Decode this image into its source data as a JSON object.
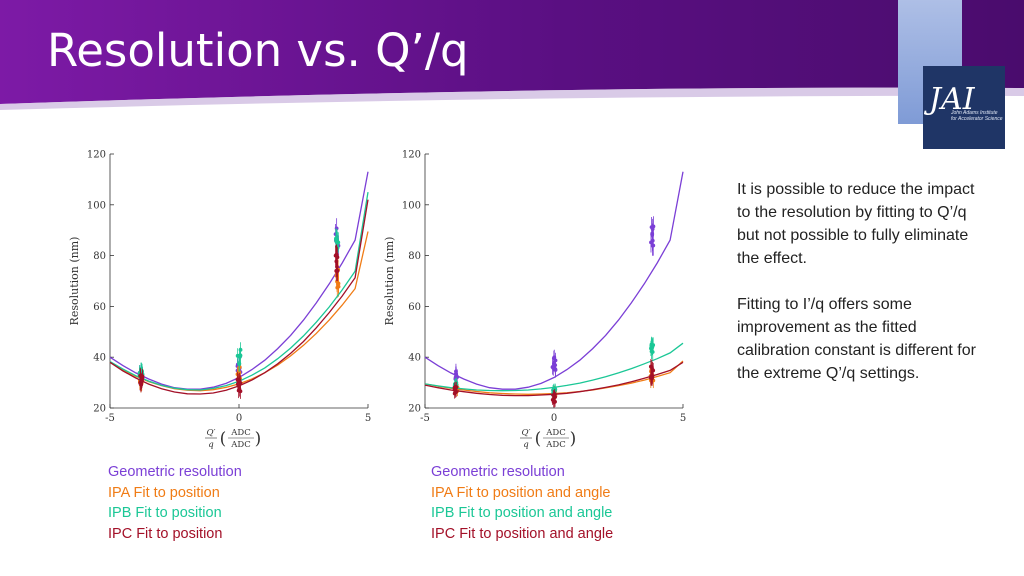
{
  "slide": {
    "title": "Resolution vs. Q’/q",
    "logo": {
      "text": "JAI",
      "subtitle": "John Adams Institute for Accelerator Science"
    },
    "paragraphs": [
      "It is possible to reduce the impact to the resolution by fitting to Q’/q but not possible to fully eliminate the effect.",
      "Fitting to I’/q offers some improvement as the fitted calibration constant is different for the extreme Q’/q settings."
    ],
    "legend_left": [
      {
        "label": "Geometric resolution",
        "color": "#7b3fd6"
      },
      {
        "label": "IPA Fit to position",
        "color": "#f07c16"
      },
      {
        "label": "IPB Fit to position",
        "color": "#1bc796"
      },
      {
        "label": "IPC Fit to position",
        "color": "#a31028"
      }
    ],
    "legend_right": [
      {
        "label": "Geometric resolution",
        "color": "#7b3fd6"
      },
      {
        "label": "IPA Fit to position and angle",
        "color": "#f07c16"
      },
      {
        "label": "IPB Fit to position and angle",
        "color": "#1bc796"
      },
      {
        "label": "IPC Fit to position  and angle",
        "color": "#a31028"
      }
    ]
  },
  "chart_data": [
    {
      "type": "scatter",
      "title": "",
      "ylabel": "Resolution (nm)",
      "xlabel_parts": {
        "lhs_num": "Q′",
        "lhs_den": "q",
        "unit_num": "ADC",
        "unit_den": "ADC"
      },
      "xlim": [
        -5,
        5
      ],
      "ylim": [
        20,
        120
      ],
      "xticks": [
        "-5",
        "0",
        "5"
      ],
      "yticks": [
        "20",
        "40",
        "60",
        "80",
        "100",
        "120"
      ],
      "series": [
        {
          "name": "Geometric resolution",
          "color": "#7b3fd6",
          "fit": [
            40.0,
            36.7,
            33.8,
            31.4,
            29.4,
            28.0,
            27.4,
            27.4,
            28.2,
            29.7,
            32.0,
            35.1,
            38.8,
            43.4,
            48.6,
            54.6,
            61.4,
            68.9,
            77.1,
            86.1,
            113.0
          ],
          "groups": [
            {
              "x": -3.8,
              "mean": 32,
              "spread": 5,
              "err": 3
            },
            {
              "x": 0.0,
              "mean": 37,
              "spread": 7,
              "err": 3
            },
            {
              "x": 3.8,
              "mean": 88,
              "spread": 10,
              "err": 4
            }
          ]
        },
        {
          "name": "IPA Fit to position",
          "color": "#f07c16",
          "fit": [
            38.0,
            35.0,
            32.5,
            30.4,
            28.8,
            27.6,
            27.0,
            26.8,
            27.2,
            28.1,
            29.5,
            31.4,
            33.9,
            36.9,
            40.5,
            44.7,
            49.4,
            54.7,
            60.5,
            67.0,
            89.5
          ],
          "groups": [
            {
              "x": -3.8,
              "mean": 31,
              "spread": 4,
              "err": 3
            },
            {
              "x": 0.0,
              "mean": 33,
              "spread": 7,
              "err": 3
            },
            {
              "x": 3.8,
              "mean": 71,
              "spread": 8,
              "err": 4
            }
          ]
        },
        {
          "name": "IPB Fit to position",
          "color": "#1bc796",
          "fit": [
            38.3,
            35.3,
            32.7,
            30.6,
            28.9,
            27.8,
            27.2,
            27.1,
            27.7,
            28.8,
            30.5,
            32.9,
            35.8,
            39.4,
            43.6,
            48.4,
            53.8,
            59.8,
            66.5,
            73.8,
            105.0
          ],
          "groups": [
            {
              "x": -3.8,
              "mean": 33,
              "spread": 4,
              "err": 3
            },
            {
              "x": 0.0,
              "mean": 40,
              "spread": 6,
              "err": 3
            },
            {
              "x": 3.8,
              "mean": 86,
              "spread": 9,
              "err": 4
            }
          ]
        },
        {
          "name": "IPC Fit to position",
          "color": "#a31028",
          "fit": [
            38.0,
            34.6,
            31.8,
            29.4,
            27.6,
            26.3,
            25.6,
            25.5,
            25.9,
            27.0,
            28.7,
            31.0,
            33.9,
            37.4,
            41.5,
            46.2,
            51.6,
            57.6,
            64.1,
            71.3,
            102.0
          ],
          "groups": [
            {
              "x": -3.8,
              "mean": 31,
              "spread": 4,
              "err": 3
            },
            {
              "x": 0.0,
              "mean": 29,
              "spread": 8,
              "err": 3
            },
            {
              "x": 3.8,
              "mean": 78,
              "spread": 9,
              "err": 4
            }
          ]
        }
      ]
    },
    {
      "type": "scatter",
      "title": "",
      "ylabel": "Resolution (nm)",
      "xlabel_parts": {
        "lhs_num": "Q′",
        "lhs_den": "q",
        "unit_num": "ADC",
        "unit_den": "ADC"
      },
      "xlim": [
        -5,
        5
      ],
      "ylim": [
        20,
        120
      ],
      "xticks": [
        "-5",
        "0",
        "5"
      ],
      "yticks": [
        "20",
        "40",
        "60",
        "80",
        "100",
        "120"
      ],
      "series": [
        {
          "name": "Geometric resolution",
          "color": "#7b3fd6",
          "fit": [
            40.0,
            36.7,
            33.8,
            31.4,
            29.4,
            28.0,
            27.4,
            27.4,
            28.2,
            29.7,
            32.0,
            35.1,
            38.8,
            43.4,
            48.6,
            54.6,
            61.4,
            68.9,
            77.1,
            86.1,
            113.0
          ],
          "groups": [
            {
              "x": -3.8,
              "mean": 33,
              "spread": 5,
              "err": 3
            },
            {
              "x": 0.0,
              "mean": 38,
              "spread": 7,
              "err": 3
            },
            {
              "x": 3.8,
              "mean": 88,
              "spread": 9,
              "err": 4
            }
          ]
        },
        {
          "name": "IPA Fit to position and angle",
          "color": "#f07c16",
          "fit": [
            29.5,
            28.6,
            27.8,
            27.1,
            26.5,
            26.0,
            25.7,
            25.5,
            25.4,
            25.5,
            25.7,
            26.0,
            26.5,
            27.1,
            27.9,
            28.8,
            29.8,
            31.0,
            32.4,
            33.9,
            38.5
          ],
          "groups": [
            {
              "x": -3.8,
              "mean": 28,
              "spread": 3,
              "err": 2
            },
            {
              "x": 0.0,
              "mean": 25,
              "spread": 4,
              "err": 2
            },
            {
              "x": 3.8,
              "mean": 33,
              "spread": 5,
              "err": 3
            }
          ]
        },
        {
          "name": "IPB Fit to position and angle",
          "color": "#1bc796",
          "fit": [
            29.5,
            28.7,
            28.0,
            27.5,
            27.1,
            26.9,
            26.8,
            26.9,
            27.1,
            27.5,
            28.1,
            28.9,
            29.8,
            31.0,
            32.3,
            33.8,
            35.5,
            37.4,
            39.4,
            41.7,
            45.5
          ],
          "groups": [
            {
              "x": -3.8,
              "mean": 29,
              "spread": 3,
              "err": 2
            },
            {
              "x": 0.0,
              "mean": 27,
              "spread": 4,
              "err": 2
            },
            {
              "x": 3.8,
              "mean": 44,
              "spread": 4,
              "err": 3
            }
          ]
        },
        {
          "name": "IPC Fit to position and angle",
          "color": "#a31028",
          "fit": [
            29.0,
            28.0,
            27.1,
            26.4,
            25.8,
            25.3,
            25.0,
            24.9,
            24.9,
            25.1,
            25.4,
            25.8,
            26.4,
            27.2,
            28.1,
            29.1,
            30.3,
            31.7,
            33.2,
            34.8,
            38.0
          ],
          "groups": [
            {
              "x": -3.8,
              "mean": 27,
              "spread": 3,
              "err": 2
            },
            {
              "x": 0.0,
              "mean": 24,
              "spread": 4,
              "err": 2
            },
            {
              "x": 3.8,
              "mean": 34,
              "spread": 5,
              "err": 3
            }
          ]
        }
      ]
    }
  ]
}
